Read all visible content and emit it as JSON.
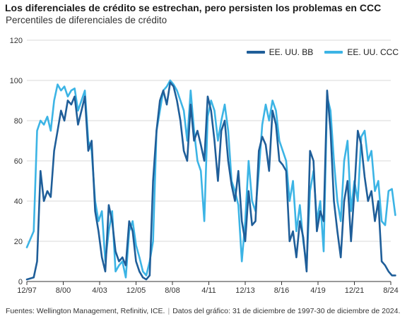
{
  "header": {
    "title": "Los diferenciales de crédito se estrechan, pero persisten los problemas en CCC",
    "subtitle": "Percentiles de diferenciales de crédito"
  },
  "footer": {
    "source": "Fuentes: Wellington Management, Refinitiv, ICE.",
    "data_note": "Datos del gráfico: 31 de diciembre de 1997-30 de diciembre de 2024."
  },
  "colors": {
    "bb": "#1f5e99",
    "ccc": "#3cb4e5",
    "grid": "#d9d9d9",
    "axis": "#333333"
  },
  "chart_data": {
    "type": "line",
    "x_ticks": [
      "12/97",
      "8/00",
      "4/03",
      "12/05",
      "8/08",
      "4/11",
      "12/13",
      "8/16",
      "4/19",
      "12/21",
      "8/24"
    ],
    "ylim": [
      0,
      120
    ],
    "y_ticks": [
      0,
      20,
      40,
      60,
      80,
      100,
      120
    ],
    "grid": true,
    "legend_position": "top-right",
    "series": [
      {
        "name": "EE. UU. BB",
        "x": [
          "12/97",
          "6/98",
          "9/98",
          "12/98",
          "3/99",
          "6/99",
          "9/99",
          "12/99",
          "3/00",
          "6/00",
          "9/00",
          "12/00",
          "3/01",
          "6/01",
          "9/01",
          "12/01",
          "3/02",
          "6/02",
          "9/02",
          "12/02",
          "3/03",
          "6/03",
          "9/03",
          "12/03",
          "3/04",
          "6/04",
          "9/04",
          "12/04",
          "3/05",
          "6/05",
          "9/05",
          "12/05",
          "3/06",
          "6/06",
          "9/06",
          "12/06",
          "3/07",
          "6/07",
          "9/07",
          "12/07",
          "3/08",
          "6/08",
          "9/08",
          "12/08",
          "3/09",
          "6/09",
          "9/09",
          "12/09",
          "3/10",
          "6/10",
          "9/10",
          "12/10",
          "3/11",
          "6/11",
          "9/11",
          "12/11",
          "3/12",
          "6/12",
          "9/12",
          "12/12",
          "3/13",
          "6/13",
          "9/13",
          "12/13",
          "3/14",
          "6/14",
          "9/14",
          "12/14",
          "3/15",
          "6/15",
          "9/15",
          "12/15",
          "3/16",
          "6/16",
          "9/16",
          "12/16",
          "3/17",
          "6/17",
          "9/17",
          "12/17",
          "3/18",
          "6/18",
          "9/18",
          "12/18",
          "3/19",
          "6/19",
          "9/19",
          "12/19",
          "3/20",
          "6/20",
          "9/20",
          "12/20",
          "3/21",
          "6/21",
          "9/21",
          "12/21",
          "3/22",
          "6/22",
          "9/22",
          "12/22",
          "3/23",
          "6/23",
          "9/23",
          "12/23",
          "3/24",
          "6/24",
          "9/24",
          "12/24"
        ],
        "values": [
          1,
          2,
          10,
          55,
          40,
          45,
          42,
          65,
          75,
          85,
          80,
          90,
          88,
          92,
          78,
          85,
          92,
          65,
          70,
          35,
          25,
          12,
          5,
          38,
          30,
          15,
          10,
          12,
          8,
          30,
          25,
          10,
          5,
          2,
          1,
          3,
          50,
          75,
          90,
          95,
          88,
          99,
          97,
          90,
          80,
          65,
          60,
          88,
          70,
          75,
          68,
          60,
          92,
          85,
          70,
          50,
          75,
          80,
          60,
          48,
          40,
          55,
          30,
          20,
          45,
          28,
          30,
          65,
          72,
          68,
          55,
          85,
          78,
          60,
          58,
          55,
          20,
          25,
          12,
          30,
          22,
          5,
          65,
          60,
          25,
          35,
          30,
          95,
          75,
          40,
          25,
          12,
          40,
          50,
          20,
          45,
          75,
          68,
          52,
          40,
          45,
          30,
          40,
          10,
          8,
          5,
          3,
          3
        ]
      },
      {
        "name": "EE. UU. CCC",
        "x": [
          "12/97",
          "6/98",
          "9/98",
          "12/98",
          "3/99",
          "6/99",
          "9/99",
          "12/99",
          "3/00",
          "6/00",
          "9/00",
          "12/00",
          "3/01",
          "6/01",
          "9/01",
          "12/01",
          "3/02",
          "6/02",
          "9/02",
          "12/02",
          "3/03",
          "6/03",
          "9/03",
          "12/03",
          "3/04",
          "6/04",
          "9/04",
          "12/04",
          "3/05",
          "6/05",
          "9/05",
          "12/05",
          "3/06",
          "6/06",
          "9/06",
          "12/06",
          "3/07",
          "6/07",
          "9/07",
          "12/07",
          "3/08",
          "6/08",
          "9/08",
          "12/08",
          "3/09",
          "6/09",
          "9/09",
          "12/09",
          "3/10",
          "6/10",
          "9/10",
          "12/10",
          "3/11",
          "6/11",
          "9/11",
          "12/11",
          "3/12",
          "6/12",
          "9/12",
          "12/12",
          "3/13",
          "6/13",
          "9/13",
          "12/13",
          "3/14",
          "6/14",
          "9/14",
          "12/14",
          "3/15",
          "6/15",
          "9/15",
          "12/15",
          "3/16",
          "6/16",
          "9/16",
          "12/16",
          "3/17",
          "6/17",
          "9/17",
          "12/17",
          "3/18",
          "6/18",
          "9/18",
          "12/18",
          "3/19",
          "6/19",
          "9/19",
          "12/19",
          "3/20",
          "6/20",
          "9/20",
          "12/20",
          "3/21",
          "6/21",
          "9/21",
          "12/21",
          "3/22",
          "6/22",
          "9/22",
          "12/22",
          "3/23",
          "6/23",
          "9/23",
          "12/23",
          "3/24",
          "6/24",
          "9/24",
          "12/24"
        ],
        "values": [
          17,
          25,
          75,
          80,
          78,
          82,
          75,
          90,
          98,
          95,
          97,
          92,
          95,
          96,
          85,
          90,
          95,
          70,
          65,
          40,
          30,
          35,
          10,
          25,
          35,
          5,
          8,
          10,
          2,
          25,
          30,
          18,
          12,
          5,
          3,
          10,
          20,
          75,
          85,
          95,
          97,
          100,
          98,
          95,
          90,
          85,
          70,
          95,
          75,
          60,
          55,
          30,
          82,
          90,
          85,
          70,
          80,
          88,
          75,
          50,
          45,
          38,
          10,
          30,
          60,
          40,
          35,
          55,
          78,
          88,
          80,
          90,
          85,
          70,
          65,
          60,
          40,
          50,
          25,
          38,
          20,
          8,
          45,
          55,
          30,
          40,
          15,
          92,
          85,
          60,
          40,
          30,
          60,
          70,
          35,
          50,
          40,
          72,
          75,
          60,
          65,
          45,
          50,
          30,
          28,
          45,
          46,
          33
        ]
      }
    ]
  }
}
